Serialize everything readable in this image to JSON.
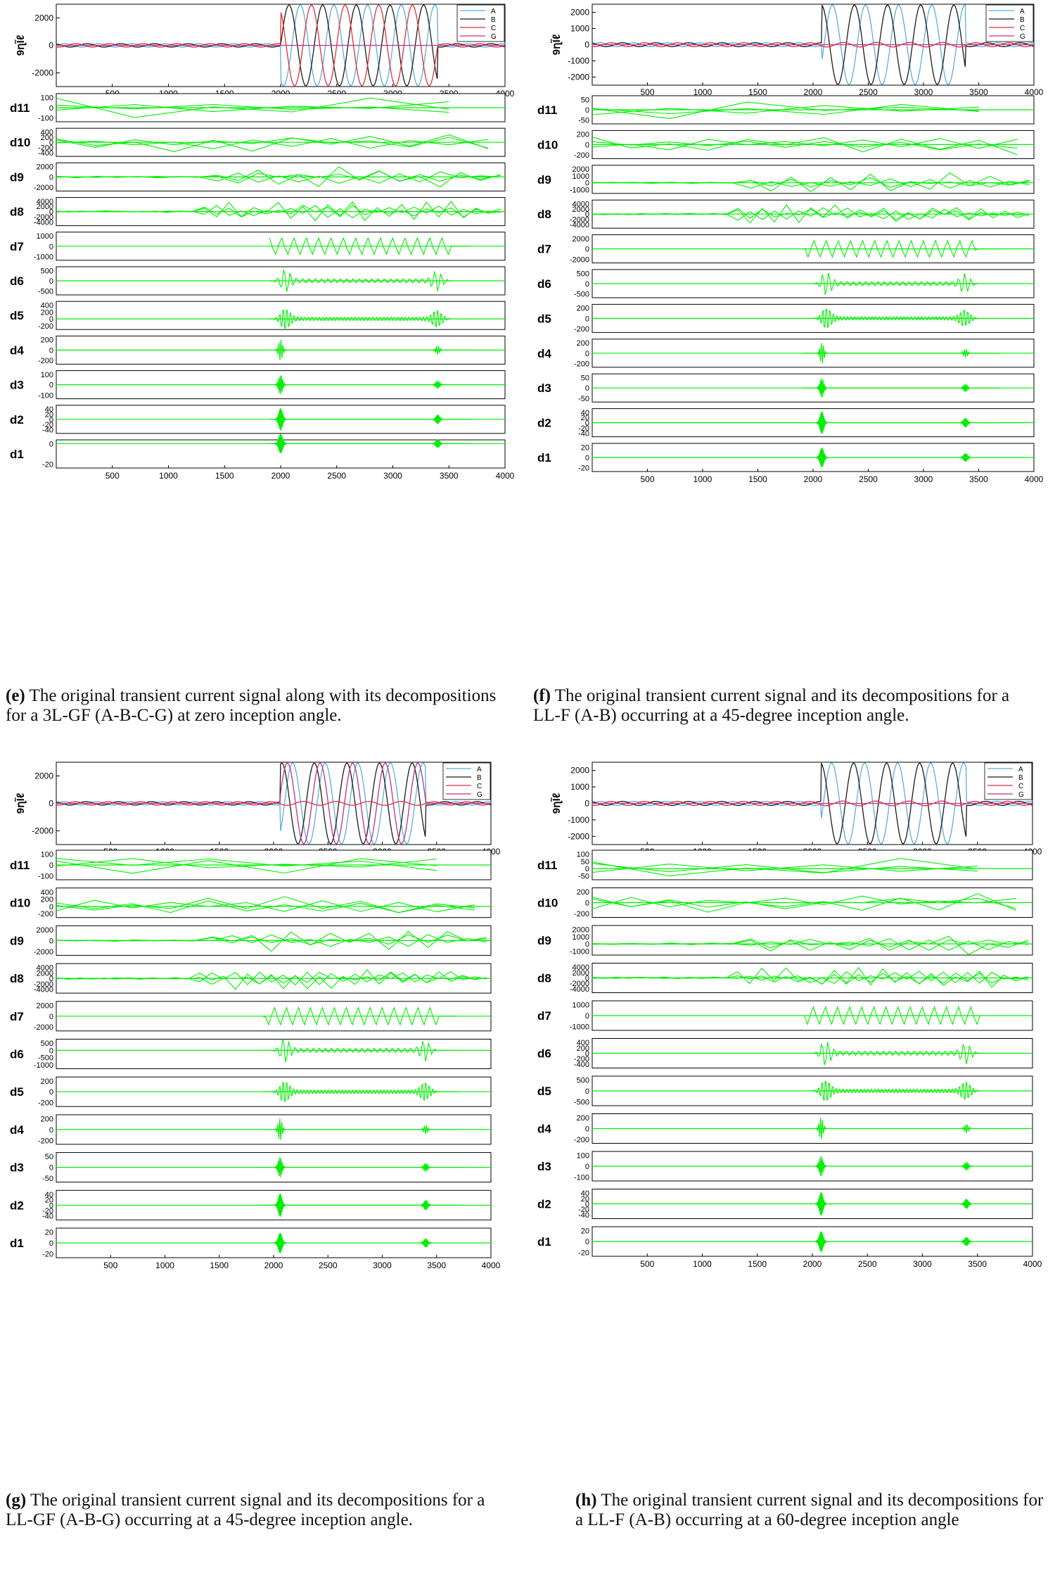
{
  "colors": {
    "A": "#5aaee0",
    "B": "#1a1a1a",
    "C": "#e0303a",
    "G": "#c02f8e",
    "detail": "#00ee00"
  },
  "figures": [
    {
      "id": "e",
      "caption": {
        "tag": "(e)",
        "text": " The original transient current signal along with its decompositions for a 3L-GF (A-B-C-G) at zero inception angle."
      },
      "main": {
        "ylabel": "9ղĨℓ",
        "yticks": [
          "2000",
          "0",
          "-2000"
        ],
        "ylim": [
          -3000,
          3000
        ],
        "faulted": [
          "A",
          "B",
          "C"
        ],
        "amp": 3000
      },
      "legend": [
        "A",
        "B",
        "C",
        "G"
      ],
      "xticks": [
        "500",
        "1000",
        "1500",
        "2000",
        "2500",
        "3000",
        "3500",
        "4000"
      ],
      "details": [
        {
          "name": "d11",
          "yticks": [
            "100",
            "0",
            "-100"
          ]
        },
        {
          "name": "d10",
          "yticks": [
            "400",
            "200",
            "0",
            "-200",
            "-400"
          ]
        },
        {
          "name": "d9",
          "yticks": [
            "2000",
            "0",
            "-2000"
          ]
        },
        {
          "name": "d8",
          "yticks": [
            "4000",
            "2000",
            "0",
            "-2000",
            "-4000"
          ]
        },
        {
          "name": "d7",
          "yticks": [
            "1000",
            "0",
            "-1000"
          ]
        },
        {
          "name": "d6",
          "yticks": [
            "500",
            "0",
            "-500"
          ]
        },
        {
          "name": "d5",
          "yticks": [
            "400",
            "200",
            "0",
            "-200"
          ]
        },
        {
          "name": "d4",
          "yticks": [
            "200",
            "0",
            "-200"
          ]
        },
        {
          "name": "d3",
          "yticks": [
            "100",
            "0",
            "-100"
          ]
        },
        {
          "name": "d2",
          "yticks": [
            "40",
            "20",
            "0",
            "-20",
            "-40"
          ]
        },
        {
          "name": "d1",
          "yticks": [
            "0",
            "-20"
          ]
        }
      ]
    },
    {
      "id": "f",
      "caption": {
        "tag": "(f)",
        "text": " The original transient current signal and its decompositions for a LL-F (A-B) occurring at a 45-degree inception angle."
      },
      "main": {
        "ylabel": "9ղĨℓ",
        "yticks": [
          "2000",
          "1000",
          "0",
          "-1000",
          "-2000"
        ],
        "ylim": [
          -2500,
          2500
        ],
        "faulted": [
          "A",
          "B"
        ],
        "amp": 2500
      },
      "legend": [
        "A",
        "B",
        "C",
        "G"
      ],
      "xticks": [
        "500",
        "1000",
        "1500",
        "2000",
        "2500",
        "3000",
        "3500",
        "4000"
      ],
      "details": [
        {
          "name": "d11",
          "yticks": [
            "50",
            "0",
            "-50"
          ]
        },
        {
          "name": "d10",
          "yticks": [
            "200",
            "0",
            "-200"
          ]
        },
        {
          "name": "d9",
          "yticks": [
            "2000",
            "1000",
            "0",
            "-1000"
          ]
        },
        {
          "name": "d8",
          "yticks": [
            "4000",
            "2000",
            "0",
            "-2000",
            "-4000"
          ]
        },
        {
          "name": "d7",
          "yticks": [
            "2000",
            "0",
            "-2000"
          ]
        },
        {
          "name": "d6",
          "yticks": [
            "500",
            "0",
            "-500"
          ]
        },
        {
          "name": "d5",
          "yticks": [
            "200",
            "0",
            "-200"
          ]
        },
        {
          "name": "d4",
          "yticks": [
            "200",
            "0",
            "-200"
          ]
        },
        {
          "name": "d3",
          "yticks": [
            "50",
            "0",
            "-50"
          ]
        },
        {
          "name": "d2",
          "yticks": [
            "40",
            "20",
            "0",
            "-20",
            "-40"
          ]
        },
        {
          "name": "d1",
          "yticks": [
            "20",
            "0",
            "-20"
          ]
        }
      ]
    },
    {
      "id": "g",
      "caption": {
        "tag": "(g)",
        "text": " The original transient current signal and its decompositions for a LL-GF (A-B-G) occurring at a 45-degree inception angle."
      },
      "main": {
        "ylabel": "9ղĨℓ",
        "yticks": [
          "2000",
          "0",
          "-2000"
        ],
        "ylim": [
          -3000,
          3000
        ],
        "faulted": [
          "A",
          "B",
          "G"
        ],
        "amp": 3000
      },
      "legend": [
        "A",
        "B",
        "C",
        "G"
      ],
      "xticks": [
        "500",
        "1000",
        "1500",
        "2000",
        "2500",
        "3000",
        "3500",
        "4000"
      ],
      "details": [
        {
          "name": "d11",
          "yticks": [
            "100",
            "0",
            "-100"
          ]
        },
        {
          "name": "d10",
          "yticks": [
            "400",
            "200",
            "0",
            "-200"
          ]
        },
        {
          "name": "d9",
          "yticks": [
            "2000",
            "0",
            "-2000"
          ]
        },
        {
          "name": "d8",
          "yticks": [
            "4000",
            "2000",
            "0",
            "-2000",
            "-4000"
          ]
        },
        {
          "name": "d7",
          "yticks": [
            "2000",
            "0",
            "-2000"
          ]
        },
        {
          "name": "d6",
          "yticks": [
            "500",
            "0",
            "-500",
            "-1000"
          ]
        },
        {
          "name": "d5",
          "yticks": [
            "200",
            "0",
            "-200"
          ]
        },
        {
          "name": "d4",
          "yticks": [
            "200",
            "0",
            "-200"
          ]
        },
        {
          "name": "d3",
          "yticks": [
            "50",
            "0",
            "-50"
          ]
        },
        {
          "name": "d2",
          "yticks": [
            "40",
            "20",
            "0",
            "-20",
            "-40"
          ]
        },
        {
          "name": "d1",
          "yticks": [
            "20",
            "0",
            "-20"
          ]
        }
      ]
    },
    {
      "id": "h",
      "caption": {
        "tag": "(h)",
        "text": " The original transient current signal and its decompositions for a LL-F (A-B) occurring at a 60-degree inception angle"
      },
      "main": {
        "ylabel": "9ղĨℓ",
        "yticks": [
          "2000",
          "1000",
          "0",
          "-1000",
          "-2000"
        ],
        "ylim": [
          -2500,
          2500
        ],
        "faulted": [
          "A",
          "B"
        ],
        "amp": 2500
      },
      "legend": [
        "A",
        "B",
        "C",
        "G"
      ],
      "xticks": [
        "500",
        "1000",
        "1500",
        "2000",
        "2500",
        "3000",
        "3500",
        "4000"
      ],
      "details": [
        {
          "name": "d11",
          "yticks": [
            "100",
            "50",
            "0",
            "-50"
          ]
        },
        {
          "name": "d10",
          "yticks": [
            "200",
            "0",
            "-200"
          ]
        },
        {
          "name": "d9",
          "yticks": [
            "2000",
            "1000",
            "0",
            "-1000"
          ]
        },
        {
          "name": "d8",
          "yticks": [
            "4000",
            "2000",
            "0",
            "-2000",
            "-4000"
          ]
        },
        {
          "name": "d7",
          "yticks": [
            "1000",
            "0",
            "-1000"
          ]
        },
        {
          "name": "d6",
          "yticks": [
            "400",
            "200",
            "0",
            "-200",
            "-400"
          ]
        },
        {
          "name": "d5",
          "yticks": [
            "500",
            "0",
            "-500"
          ]
        },
        {
          "name": "d4",
          "yticks": [
            "200",
            "0",
            "-200"
          ]
        },
        {
          "name": "d3",
          "yticks": [
            "100",
            "0",
            "-100"
          ]
        },
        {
          "name": "d2",
          "yticks": [
            "40",
            "20",
            "0",
            "-20",
            "-40"
          ]
        },
        {
          "name": "d1",
          "yticks": [
            "20",
            "0",
            "-20"
          ]
        }
      ]
    }
  ],
  "chart_data": [
    {
      "type": "line",
      "id": "e",
      "xlim": [
        0,
        4000
      ],
      "ylim": [
        -3000,
        3000
      ],
      "series": [
        {
          "name": "A"
        },
        {
          "name": "B"
        },
        {
          "name": "C"
        },
        {
          "name": "G"
        }
      ],
      "fault_window": [
        2000,
        3400
      ]
    },
    {
      "type": "line",
      "id": "f",
      "xlim": [
        0,
        4000
      ],
      "ylim": [
        -2500,
        2500
      ],
      "series": [
        {
          "name": "A"
        },
        {
          "name": "B"
        },
        {
          "name": "C"
        },
        {
          "name": "G"
        }
      ],
      "fault_window": [
        2080,
        3380
      ]
    },
    {
      "type": "line",
      "id": "g",
      "xlim": [
        0,
        4000
      ],
      "ylim": [
        -3000,
        3000
      ],
      "series": [
        {
          "name": "A"
        },
        {
          "name": "B"
        },
        {
          "name": "C"
        },
        {
          "name": "G"
        }
      ],
      "fault_window": [
        2060,
        3400
      ]
    },
    {
      "type": "line",
      "id": "h",
      "xlim": [
        0,
        4000
      ],
      "ylim": [
        -2500,
        2500
      ],
      "series": [
        {
          "name": "A"
        },
        {
          "name": "B"
        },
        {
          "name": "C"
        },
        {
          "name": "G"
        }
      ],
      "fault_window": [
        2080,
        3400
      ]
    }
  ]
}
